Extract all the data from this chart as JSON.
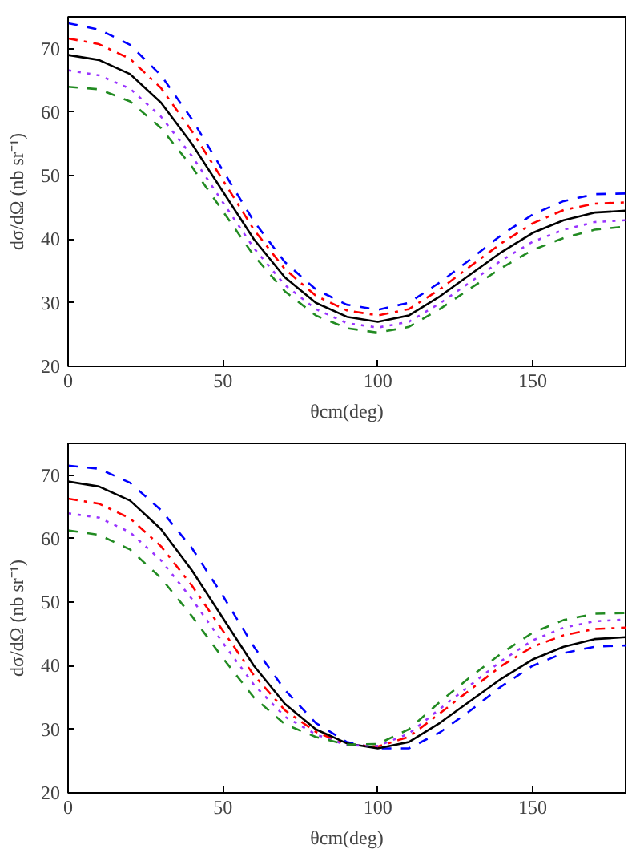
{
  "chart_data": [
    {
      "type": "line",
      "xlabel": "θcm(deg)",
      "ylabel": "dσ/dΩ (nb sr⁻¹)",
      "xlim": [
        0,
        180
      ],
      "ylim": [
        20,
        75
      ],
      "xticks": [
        0,
        50,
        100,
        150
      ],
      "yticks": [
        20,
        30,
        40,
        50,
        60,
        70
      ],
      "grid": false,
      "x": [
        0,
        10,
        20,
        30,
        40,
        50,
        60,
        70,
        80,
        90,
        100,
        110,
        120,
        130,
        140,
        150,
        160,
        170,
        180
      ],
      "series": [
        {
          "color": "#0000ff",
          "line_style": "dashed",
          "values": [
            74,
            73,
            70.6,
            65.8,
            58.9,
            50.8,
            42.8,
            36.4,
            32.1,
            29.7,
            28.9,
            30,
            33.2,
            36.9,
            40.7,
            43.9,
            46,
            47.1,
            47.2
          ]
        },
        {
          "color": "#ff0000",
          "line_style": "dashdot",
          "values": [
            71.6,
            70.7,
            68.4,
            63.8,
            57,
            49.3,
            41.5,
            35.3,
            31.1,
            28.8,
            28,
            29,
            32.1,
            35.8,
            39.4,
            42.5,
            44.6,
            45.6,
            45.8
          ]
        },
        {
          "color": "#000000",
          "line_style": "solid",
          "values": [
            69,
            68.2,
            66,
            61.5,
            55,
            47.5,
            40,
            34,
            30,
            27.8,
            27,
            28,
            31,
            34.5,
            38,
            41,
            43,
            44.2,
            44.5
          ]
        },
        {
          "color": "#9933ff",
          "line_style": "dotted",
          "values": [
            66.6,
            65.8,
            63.7,
            59.3,
            53.1,
            45.8,
            38.6,
            32.8,
            29,
            26.8,
            26.1,
            27,
            29.9,
            33.3,
            36.7,
            39.6,
            41.5,
            42.7,
            43
          ]
        },
        {
          "color": "#228b22",
          "line_style": "dashed",
          "values": [
            64,
            63.6,
            61.7,
            57.5,
            51.4,
            44.4,
            37.4,
            31.8,
            28,
            26,
            25.3,
            26.2,
            29,
            32.3,
            35.5,
            38.3,
            40.2,
            41.5,
            42
          ]
        }
      ]
    },
    {
      "type": "line",
      "xlabel": "θcm(deg)",
      "ylabel": "dσ/dΩ (nb sr⁻¹)",
      "xlim": [
        0,
        180
      ],
      "ylim": [
        20,
        75
      ],
      "xticks": [
        0,
        50,
        100,
        150
      ],
      "yticks": [
        20,
        30,
        40,
        50,
        60,
        70
      ],
      "grid": false,
      "x": [
        0,
        10,
        20,
        30,
        40,
        50,
        60,
        70,
        80,
        90,
        100,
        110,
        120,
        130,
        140,
        150,
        160,
        170,
        180
      ],
      "series": [
        {
          "color": "#0000ff",
          "line_style": "dashed",
          "values": [
            71.5,
            71,
            68.8,
            64.5,
            58.5,
            51,
            43,
            36.2,
            31,
            28,
            27,
            27,
            29.5,
            33,
            36.8,
            40,
            42,
            43,
            43.2
          ]
        },
        {
          "color": "#ff0000",
          "line_style": "dashdot",
          "values": [
            66.3,
            65.5,
            63.2,
            58.8,
            52.6,
            45.5,
            38.5,
            33,
            29.6,
            27.6,
            27.3,
            28.8,
            32.5,
            36.3,
            40,
            43,
            44.8,
            45.8,
            46
          ]
        },
        {
          "color": "#000000",
          "line_style": "solid",
          "values": [
            69,
            68.2,
            66,
            61.5,
            55,
            47.5,
            40,
            34,
            30,
            27.8,
            27,
            28,
            31,
            34.5,
            38,
            41,
            43,
            44.2,
            44.5
          ]
        },
        {
          "color": "#9933ff",
          "line_style": "dotted",
          "values": [
            64,
            63.3,
            61,
            56.6,
            50.5,
            43.6,
            37,
            32,
            29.2,
            27.5,
            27.4,
            29.3,
            33.2,
            37,
            40.8,
            44,
            46,
            47,
            47.3
          ]
        },
        {
          "color": "#228b22",
          "line_style": "dashed",
          "values": [
            61.3,
            60.6,
            58.3,
            53.8,
            47.8,
            41.2,
            35,
            30.8,
            28.8,
            27.6,
            27.7,
            30,
            34.3,
            38.3,
            42,
            45.2,
            47.2,
            48.2,
            48.3
          ]
        }
      ]
    }
  ]
}
